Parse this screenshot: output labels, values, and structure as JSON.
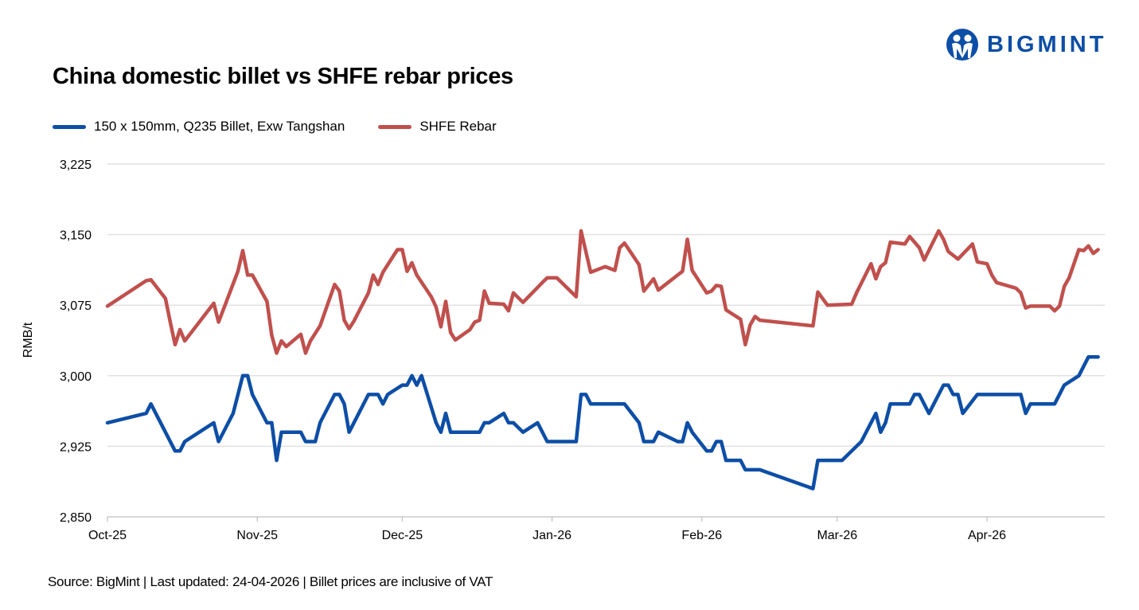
{
  "brand": {
    "name": "BIGMINT",
    "color": "#0D4EA6"
  },
  "chart_data": {
    "type": "line",
    "title": "China domestic billet vs SHFE rebar prices",
    "ylabel": "RMB/t",
    "xlabel": "",
    "ylim": [
      2850,
      3225
    ],
    "yticks": [
      2850,
      2925,
      3000,
      3075,
      3150,
      3225
    ],
    "ytick_labels": [
      "2,850",
      "2,925",
      "3,000",
      "3,075",
      "3,150",
      "3,225"
    ],
    "xticks": [
      "2025-10-01",
      "2025-11-01",
      "2025-12-01",
      "2026-01-01",
      "2026-02-01",
      "2026-03-01",
      "2026-04-01"
    ],
    "xtick_labels": [
      "Oct-25",
      "Nov-25",
      "Dec-25",
      "Jan-26",
      "Feb-26",
      "Mar-26",
      "Apr-26"
    ],
    "grid": "horizontal",
    "legend_position": "top-left",
    "series": [
      {
        "name": "150 x 150mm, Q235 Billet, Exw Tangshan",
        "color": "#0D4EA6",
        "points": [
          [
            "2025-10-01",
            2950
          ],
          [
            "2025-10-09",
            2960
          ],
          [
            "2025-10-10",
            2970
          ],
          [
            "2025-10-15",
            2920
          ],
          [
            "2025-10-16",
            2920
          ],
          [
            "2025-10-17",
            2930
          ],
          [
            "2025-10-23",
            2950
          ],
          [
            "2025-10-24",
            2930
          ],
          [
            "2025-10-27",
            2960
          ],
          [
            "2025-10-29",
            3000
          ],
          [
            "2025-10-30",
            3000
          ],
          [
            "2025-10-31",
            2980
          ],
          [
            "2025-11-03",
            2950
          ],
          [
            "2025-11-04",
            2950
          ],
          [
            "2025-11-05",
            2910
          ],
          [
            "2025-11-06",
            2940
          ],
          [
            "2025-11-10",
            2940
          ],
          [
            "2025-11-11",
            2930
          ],
          [
            "2025-11-13",
            2930
          ],
          [
            "2025-11-14",
            2950
          ],
          [
            "2025-11-17",
            2980
          ],
          [
            "2025-11-18",
            2980
          ],
          [
            "2025-11-19",
            2970
          ],
          [
            "2025-11-20",
            2940
          ],
          [
            "2025-11-24",
            2980
          ],
          [
            "2025-11-26",
            2980
          ],
          [
            "2025-11-27",
            2970
          ],
          [
            "2025-11-28",
            2980
          ],
          [
            "2025-12-01",
            2990
          ],
          [
            "2025-12-02",
            2990
          ],
          [
            "2025-12-03",
            3000
          ],
          [
            "2025-12-04",
            2990
          ],
          [
            "2025-12-05",
            3000
          ],
          [
            "2025-12-08",
            2950
          ],
          [
            "2025-12-09",
            2940
          ],
          [
            "2025-12-10",
            2960
          ],
          [
            "2025-12-11",
            2940
          ],
          [
            "2025-12-17",
            2940
          ],
          [
            "2025-12-18",
            2950
          ],
          [
            "2025-12-19",
            2950
          ],
          [
            "2025-12-22",
            2960
          ],
          [
            "2025-12-23",
            2950
          ],
          [
            "2025-12-24",
            2950
          ],
          [
            "2025-12-26",
            2940
          ],
          [
            "2025-12-29",
            2950
          ],
          [
            "2025-12-31",
            2930
          ],
          [
            "2026-01-06",
            2930
          ],
          [
            "2026-01-07",
            2980
          ],
          [
            "2026-01-08",
            2980
          ],
          [
            "2026-01-09",
            2970
          ],
          [
            "2026-01-16",
            2970
          ],
          [
            "2026-01-19",
            2950
          ],
          [
            "2026-01-20",
            2930
          ],
          [
            "2026-01-22",
            2930
          ],
          [
            "2026-01-23",
            2940
          ],
          [
            "2026-01-27",
            2930
          ],
          [
            "2026-01-28",
            2930
          ],
          [
            "2026-01-29",
            2950
          ],
          [
            "2026-01-30",
            2940
          ],
          [
            "2026-02-02",
            2920
          ],
          [
            "2026-02-03",
            2920
          ],
          [
            "2026-02-04",
            2930
          ],
          [
            "2026-02-05",
            2930
          ],
          [
            "2026-02-06",
            2910
          ],
          [
            "2026-02-09",
            2910
          ],
          [
            "2026-02-10",
            2900
          ],
          [
            "2026-02-13",
            2900
          ],
          [
            "2026-02-24",
            2880
          ],
          [
            "2026-02-25",
            2910
          ],
          [
            "2026-03-02",
            2910
          ],
          [
            "2026-03-04",
            2920
          ],
          [
            "2026-03-06",
            2930
          ],
          [
            "2026-03-09",
            2960
          ],
          [
            "2026-03-10",
            2940
          ],
          [
            "2026-03-11",
            2950
          ],
          [
            "2026-03-12",
            2970
          ],
          [
            "2026-03-16",
            2970
          ],
          [
            "2026-03-17",
            2980
          ],
          [
            "2026-03-18",
            2980
          ],
          [
            "2026-03-20",
            2960
          ],
          [
            "2026-03-23",
            2990
          ],
          [
            "2026-03-24",
            2990
          ],
          [
            "2026-03-25",
            2980
          ],
          [
            "2026-03-26",
            2980
          ],
          [
            "2026-03-27",
            2960
          ],
          [
            "2026-03-30",
            2980
          ],
          [
            "2026-04-08",
            2980
          ],
          [
            "2026-04-09",
            2960
          ],
          [
            "2026-04-10",
            2970
          ],
          [
            "2026-04-15",
            2970
          ],
          [
            "2026-04-17",
            2990
          ],
          [
            "2026-04-20",
            3000
          ],
          [
            "2026-04-22",
            3020
          ],
          [
            "2026-04-24",
            3020
          ]
        ]
      },
      {
        "name": "SHFE Rebar",
        "color": "#C0504D",
        "points": [
          [
            "2025-10-01",
            3074
          ],
          [
            "2025-10-09",
            3101
          ],
          [
            "2025-10-10",
            3102
          ],
          [
            "2025-10-13",
            3082
          ],
          [
            "2025-10-14",
            3057
          ],
          [
            "2025-10-15",
            3033
          ],
          [
            "2025-10-16",
            3049
          ],
          [
            "2025-10-17",
            3037
          ],
          [
            "2025-10-23",
            3077
          ],
          [
            "2025-10-24",
            3057
          ],
          [
            "2025-10-28",
            3111
          ],
          [
            "2025-10-29",
            3133
          ],
          [
            "2025-10-30",
            3107
          ],
          [
            "2025-10-31",
            3107
          ],
          [
            "2025-11-03",
            3079
          ],
          [
            "2025-11-04",
            3043
          ],
          [
            "2025-11-05",
            3024
          ],
          [
            "2025-11-06",
            3037
          ],
          [
            "2025-11-07",
            3031
          ],
          [
            "2025-11-10",
            3044
          ],
          [
            "2025-11-11",
            3024
          ],
          [
            "2025-11-12",
            3037
          ],
          [
            "2025-11-14",
            3053
          ],
          [
            "2025-11-17",
            3097
          ],
          [
            "2025-11-18",
            3090
          ],
          [
            "2025-11-19",
            3059
          ],
          [
            "2025-11-20",
            3050
          ],
          [
            "2025-11-21",
            3058
          ],
          [
            "2025-11-24",
            3088
          ],
          [
            "2025-11-25",
            3107
          ],
          [
            "2025-11-26",
            3097
          ],
          [
            "2025-11-27",
            3110
          ],
          [
            "2025-11-30",
            3134
          ],
          [
            "2025-12-01",
            3134
          ],
          [
            "2025-12-02",
            3111
          ],
          [
            "2025-12-03",
            3120
          ],
          [
            "2025-12-04",
            3107
          ],
          [
            "2025-12-07",
            3084
          ],
          [
            "2025-12-08",
            3073
          ],
          [
            "2025-12-09",
            3052
          ],
          [
            "2025-12-10",
            3079
          ],
          [
            "2025-12-11",
            3046
          ],
          [
            "2025-12-12",
            3038
          ],
          [
            "2025-12-15",
            3049
          ],
          [
            "2025-12-16",
            3057
          ],
          [
            "2025-12-17",
            3059
          ],
          [
            "2025-12-18",
            3090
          ],
          [
            "2025-12-19",
            3077
          ],
          [
            "2025-12-22",
            3076
          ],
          [
            "2025-12-23",
            3069
          ],
          [
            "2025-12-24",
            3088
          ],
          [
            "2025-12-26",
            3078
          ],
          [
            "2025-12-30",
            3099
          ],
          [
            "2025-12-31",
            3104
          ],
          [
            "2026-01-02",
            3104
          ],
          [
            "2026-01-06",
            3084
          ],
          [
            "2026-01-07",
            3154
          ],
          [
            "2026-01-09",
            3110
          ],
          [
            "2026-01-12",
            3116
          ],
          [
            "2026-01-13",
            3114
          ],
          [
            "2026-01-14",
            3112
          ],
          [
            "2026-01-15",
            3136
          ],
          [
            "2026-01-16",
            3141
          ],
          [
            "2026-01-19",
            3118
          ],
          [
            "2026-01-20",
            3090
          ],
          [
            "2026-01-22",
            3103
          ],
          [
            "2026-01-23",
            3091
          ],
          [
            "2026-01-27",
            3107
          ],
          [
            "2026-01-28",
            3111
          ],
          [
            "2026-01-29",
            3145
          ],
          [
            "2026-01-30",
            3112
          ],
          [
            "2026-02-02",
            3088
          ],
          [
            "2026-02-03",
            3090
          ],
          [
            "2026-02-04",
            3096
          ],
          [
            "2026-02-05",
            3095
          ],
          [
            "2026-02-06",
            3070
          ],
          [
            "2026-02-09",
            3060
          ],
          [
            "2026-02-10",
            3033
          ],
          [
            "2026-02-11",
            3054
          ],
          [
            "2026-02-12",
            3063
          ],
          [
            "2026-02-13",
            3059
          ],
          [
            "2026-02-24",
            3053
          ],
          [
            "2026-02-25",
            3089
          ],
          [
            "2026-02-27",
            3075
          ],
          [
            "2026-03-04",
            3076
          ],
          [
            "2026-03-05",
            3088
          ],
          [
            "2026-03-08",
            3119
          ],
          [
            "2026-03-09",
            3103
          ],
          [
            "2026-03-10",
            3116
          ],
          [
            "2026-03-11",
            3120
          ],
          [
            "2026-03-12",
            3142
          ],
          [
            "2026-03-15",
            3140
          ],
          [
            "2026-03-16",
            3148
          ],
          [
            "2026-03-18",
            3136
          ],
          [
            "2026-03-19",
            3123
          ],
          [
            "2026-03-22",
            3154
          ],
          [
            "2026-03-23",
            3145
          ],
          [
            "2026-03-24",
            3132
          ],
          [
            "2026-03-26",
            3124
          ],
          [
            "2026-03-29",
            3140
          ],
          [
            "2026-03-30",
            3121
          ],
          [
            "2026-04-01",
            3119
          ],
          [
            "2026-04-02",
            3107
          ],
          [
            "2026-04-03",
            3099
          ],
          [
            "2026-04-07",
            3093
          ],
          [
            "2026-04-08",
            3088
          ],
          [
            "2026-04-09",
            3072
          ],
          [
            "2026-04-10",
            3074
          ],
          [
            "2026-04-14",
            3074
          ],
          [
            "2026-04-15",
            3069
          ],
          [
            "2026-04-16",
            3074
          ],
          [
            "2026-04-17",
            3095
          ],
          [
            "2026-04-18",
            3104
          ],
          [
            "2026-04-20",
            3134
          ],
          [
            "2026-04-21",
            3133
          ],
          [
            "2026-04-22",
            3138
          ],
          [
            "2026-04-23",
            3130
          ],
          [
            "2026-04-24",
            3134
          ]
        ]
      }
    ],
    "source": "Source: BigMint | Last updated: 24-04-2026 | Billet prices are inclusive of VAT"
  }
}
